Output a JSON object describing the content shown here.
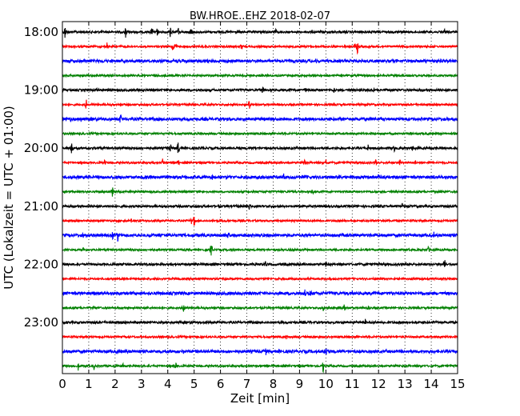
{
  "chart_data": {
    "type": "line",
    "title": "BW.HROE..EHZ 2018-02-07",
    "xlabel": "Zeit  [min]",
    "ylabel": "UTC (Lokalzeit = UTC + 01:00)",
    "xlim": [
      0,
      15
    ],
    "x_ticks": [
      "0",
      "1",
      "2",
      "3",
      "4",
      "5",
      "6",
      "7",
      "8",
      "9",
      "10",
      "11",
      "12",
      "13",
      "14",
      "15"
    ],
    "y_ticks": [
      {
        "label": "18:00",
        "trace": 0
      },
      {
        "label": "19:00",
        "trace": 4
      },
      {
        "label": "20:00",
        "trace": 8
      },
      {
        "label": "21:00",
        "trace": 12
      },
      {
        "label": "22:00",
        "trace": 16
      },
      {
        "label": "23:00",
        "trace": 20
      }
    ],
    "grid": "vertical dotted",
    "trace_minutes": 15,
    "color_cycle": [
      "#000000",
      "#ff0000",
      "#0000ff",
      "#008000"
    ],
    "traces": [
      {
        "start": "18:00",
        "color_index": 0,
        "spikes": [
          [
            0.1,
            10
          ],
          [
            2.4,
            10
          ],
          [
            3.4,
            9
          ],
          [
            3.6,
            7
          ],
          [
            4.1,
            10
          ],
          [
            4.4,
            6
          ],
          [
            4.9,
            10
          ],
          [
            8.1,
            6
          ],
          [
            14.5,
            5
          ]
        ]
      },
      {
        "start": "18:15",
        "color_index": 1,
        "spikes": [
          [
            1.7,
            7
          ],
          [
            4.2,
            10
          ],
          [
            4.3,
            8
          ],
          [
            6.8,
            8
          ],
          [
            10.6,
            4
          ],
          [
            11.2,
            10
          ],
          [
            11.1,
            6
          ]
        ]
      },
      {
        "start": "18:30",
        "color_index": 2,
        "spikes": [
          [
            9.6,
            4
          ]
        ]
      },
      {
        "start": "18:45",
        "color_index": 3,
        "spikes": [
          [
            3.5,
            4
          ]
        ]
      },
      {
        "start": "19:00",
        "color_index": 0,
        "spikes": [
          [
            1.3,
            4
          ],
          [
            7.6,
            7
          ],
          [
            9.2,
            5
          ],
          [
            10.3,
            6
          ],
          [
            11.8,
            3
          ]
        ]
      },
      {
        "start": "19:15",
        "color_index": 1,
        "spikes": [
          [
            0.9,
            8
          ],
          [
            7.1,
            9
          ],
          [
            6.9,
            5
          ]
        ]
      },
      {
        "start": "19:30",
        "color_index": 2,
        "spikes": [
          [
            0.3,
            4
          ],
          [
            2.2,
            9
          ],
          [
            0.7,
            3
          ]
        ]
      },
      {
        "start": "19:45",
        "color_index": 3,
        "spikes": []
      },
      {
        "start": "20:00",
        "color_index": 0,
        "spikes": [
          [
            0.35,
            11
          ],
          [
            1.3,
            3
          ],
          [
            4.1,
            6
          ],
          [
            4.4,
            12
          ],
          [
            11.6,
            4
          ],
          [
            12.6,
            5
          ],
          [
            13.3,
            4
          ]
        ]
      },
      {
        "start": "20:15",
        "color_index": 1,
        "spikes": [
          [
            1.6,
            5
          ],
          [
            3.8,
            6
          ],
          [
            4.4,
            6
          ],
          [
            9.2,
            5
          ],
          [
            10.0,
            4
          ],
          [
            11.9,
            5
          ],
          [
            12.8,
            7
          ],
          [
            13.4,
            4
          ]
        ]
      },
      {
        "start": "20:30",
        "color_index": 2,
        "spikes": [
          [
            5.7,
            5
          ],
          [
            8.4,
            5
          ],
          [
            9.2,
            4
          ],
          [
            10.5,
            3
          ],
          [
            12.0,
            5
          ],
          [
            14.1,
            4
          ]
        ]
      },
      {
        "start": "20:45",
        "color_index": 3,
        "spikes": [
          [
            1.9,
            7
          ],
          [
            9.5,
            4
          ]
        ]
      },
      {
        "start": "21:00",
        "color_index": 0,
        "spikes": [
          [
            7.1,
            4
          ],
          [
            8.9,
            4
          ],
          [
            9.3,
            4
          ],
          [
            12.9,
            4
          ],
          [
            14.9,
            4
          ]
        ]
      },
      {
        "start": "21:15",
        "color_index": 1,
        "spikes": [
          [
            2.6,
            6
          ],
          [
            5.0,
            9
          ],
          [
            4.9,
            5
          ],
          [
            8.8,
            3
          ]
        ]
      },
      {
        "start": "21:30",
        "color_index": 2,
        "spikes": [
          [
            0.8,
            5
          ],
          [
            1.9,
            7
          ],
          [
            2.1,
            9
          ],
          [
            3.3,
            5
          ],
          [
            6.3,
            4
          ],
          [
            7.5,
            4
          ],
          [
            14.1,
            4
          ]
        ]
      },
      {
        "start": "21:45",
        "color_index": 3,
        "spikes": [
          [
            0.8,
            4
          ],
          [
            5.65,
            12
          ],
          [
            13.9,
            5
          ]
        ]
      },
      {
        "start": "22:00",
        "color_index": 0,
        "spikes": [
          [
            1.3,
            3
          ],
          [
            7.7,
            6
          ],
          [
            10.0,
            3
          ],
          [
            14.5,
            9
          ]
        ]
      },
      {
        "start": "22:15",
        "color_index": 1,
        "spikes": [
          [
            6.2,
            4
          ]
        ]
      },
      {
        "start": "22:30",
        "color_index": 2,
        "spikes": [
          [
            9.2,
            7
          ],
          [
            9.4,
            6
          ],
          [
            10.3,
            4
          ],
          [
            11.0,
            3
          ]
        ]
      },
      {
        "start": "22:45",
        "color_index": 3,
        "spikes": [
          [
            1.2,
            4
          ],
          [
            4.6,
            6
          ],
          [
            9.9,
            5
          ],
          [
            10.1,
            6
          ],
          [
            10.7,
            6
          ],
          [
            11.6,
            7
          ]
        ]
      },
      {
        "start": "23:00",
        "color_index": 0,
        "spikes": [
          [
            11.5,
            4
          ],
          [
            14.2,
            3
          ]
        ]
      },
      {
        "start": "23:15",
        "color_index": 1,
        "spikes": [
          [
            8.5,
            4
          ]
        ]
      },
      {
        "start": "23:30",
        "color_index": 2,
        "spikes": [
          [
            4.6,
            3
          ],
          [
            7.7,
            10
          ],
          [
            10.0,
            8
          ]
        ]
      },
      {
        "start": "23:45",
        "color_index": 3,
        "spikes": [
          [
            0.6,
            8
          ],
          [
            1.2,
            4
          ],
          [
            2.3,
            4
          ],
          [
            4.3,
            5
          ],
          [
            9.9,
            9
          ]
        ]
      }
    ]
  }
}
